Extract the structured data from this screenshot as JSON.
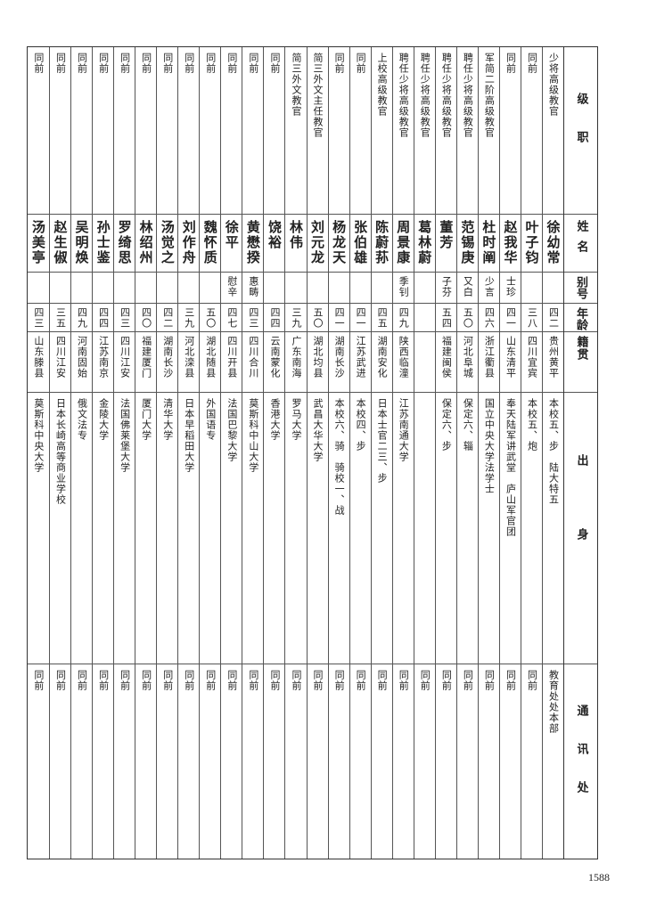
{
  "headers": {
    "rank": "级职",
    "name": "姓名",
    "alias": "别号",
    "age": "年龄",
    "native": "籍贯",
    "education": "出身",
    "address": "通讯处"
  },
  "rows": [
    {
      "rank": "少将高级教官",
      "name": "徐幼常",
      "alias": "",
      "age": "四二",
      "native": "贵州黄平",
      "education": "本校五、步　陆大特五",
      "address": "教育处处本部"
    },
    {
      "rank": "同前",
      "name": "叶子钧",
      "alias": "",
      "age": "三八",
      "native": "四川宜宾",
      "education": "本校五、炮",
      "address": "同前"
    },
    {
      "rank": "同前",
      "name": "赵我华",
      "alias": "士珍",
      "age": "四一",
      "native": "山东清平",
      "education": "奉天陆军讲武堂　庐山军官团",
      "address": "同前"
    },
    {
      "rank": "军简二阶高级教官",
      "name": "杜时阐",
      "alias": "少言",
      "age": "四六",
      "native": "浙江衢县",
      "education": "国立中央大学法学士",
      "address": "同前"
    },
    {
      "rank": "聘任少将高级教官",
      "name": "范锡庚",
      "alias": "又白",
      "age": "五〇",
      "native": "河北阜城",
      "education": "保定六、辎",
      "address": "同前"
    },
    {
      "rank": "聘任少将高级教官",
      "name": "董芳",
      "alias": "子芬",
      "age": "五四",
      "native": "福建闽侯",
      "education": "保定六、步",
      "address": "同前"
    },
    {
      "rank": "聘任少将高级教官",
      "name": "葛林蔚",
      "alias": "",
      "age": "",
      "native": "",
      "education": "",
      "address": "同前"
    },
    {
      "rank": "聘任少将高级教官",
      "name": "周景康",
      "alias": "季钊",
      "age": "四九",
      "native": "陕西临潼",
      "education": "江苏南通大学",
      "address": "同前"
    },
    {
      "rank": "上校高级教官",
      "name": "陈蔚荪",
      "alias": "",
      "age": "四五",
      "native": "湖南安化",
      "education": "日本士官二三、步",
      "address": "同前"
    },
    {
      "rank": "同前",
      "name": "张伯雄",
      "alias": "",
      "age": "四一",
      "native": "江苏武进",
      "education": "本校四、步",
      "address": "同前"
    },
    {
      "rank": "同前",
      "name": "杨龙天",
      "alias": "",
      "age": "四一",
      "native": "湖南长沙",
      "education": "本校六、骑　骑校一、战",
      "address": "同前"
    },
    {
      "rank": "简三外文主任教官",
      "name": "刘元龙",
      "alias": "",
      "age": "五〇",
      "native": "湖北均县",
      "education": "武昌大华大学",
      "address": "同前"
    },
    {
      "rank": "简三外文教官",
      "name": "林伟",
      "alias": "",
      "age": "三九",
      "native": "广东南海",
      "education": "罗马大学",
      "address": "同前"
    },
    {
      "rank": "同前",
      "name": "饶裕",
      "alias": "",
      "age": "四四",
      "native": "云南蒙化",
      "education": "香港大学",
      "address": "同前"
    },
    {
      "rank": "同前",
      "name": "黄懋揆",
      "alias": "惠畴",
      "age": "四三",
      "native": "四川合川",
      "education": "莫斯科中山大学",
      "address": "同前"
    },
    {
      "rank": "同前",
      "name": "徐平",
      "alias": "慰辛",
      "age": "四七",
      "native": "四川开县",
      "education": "法国巴黎大学",
      "address": "同前"
    },
    {
      "rank": "同前",
      "name": "魏怀质",
      "alias": "",
      "age": "五〇",
      "native": "湖北随县",
      "education": "外国语专",
      "address": "同前"
    },
    {
      "rank": "同前",
      "name": "刘作舟",
      "alias": "",
      "age": "三九",
      "native": "河北滦县",
      "education": "日本早稻田大学",
      "address": "同前"
    },
    {
      "rank": "同前",
      "name": "汤觉之",
      "alias": "",
      "age": "四二",
      "native": "湖南长沙",
      "education": "清华大学",
      "address": "同前"
    },
    {
      "rank": "同前",
      "name": "林绍州",
      "alias": "",
      "age": "四〇",
      "native": "福建厦门",
      "education": "厦门大学",
      "address": "同前"
    },
    {
      "rank": "同前",
      "name": "罗绮思",
      "alias": "",
      "age": "四三",
      "native": "四川江安",
      "education": "法国佛莱堡大学",
      "address": "同前"
    },
    {
      "rank": "同前",
      "name": "孙士鉴",
      "alias": "",
      "age": "四四",
      "native": "江苏南京",
      "education": "金陵大学",
      "address": "同前"
    },
    {
      "rank": "同前",
      "name": "吴明焕",
      "alias": "",
      "age": "四九",
      "native": "河南固始",
      "education": "俄文法专",
      "address": "同前"
    },
    {
      "rank": "同前",
      "name": "赵生俶",
      "alias": "",
      "age": "三五",
      "native": "四川江安",
      "education": "日本长崎高等商业学校",
      "address": "同前"
    },
    {
      "rank": "同前",
      "name": "汤美亭",
      "alias": "",
      "age": "四三",
      "native": "山东滕县",
      "education": "莫斯科中央大学",
      "address": "同前"
    }
  ],
  "page_number": "1588"
}
